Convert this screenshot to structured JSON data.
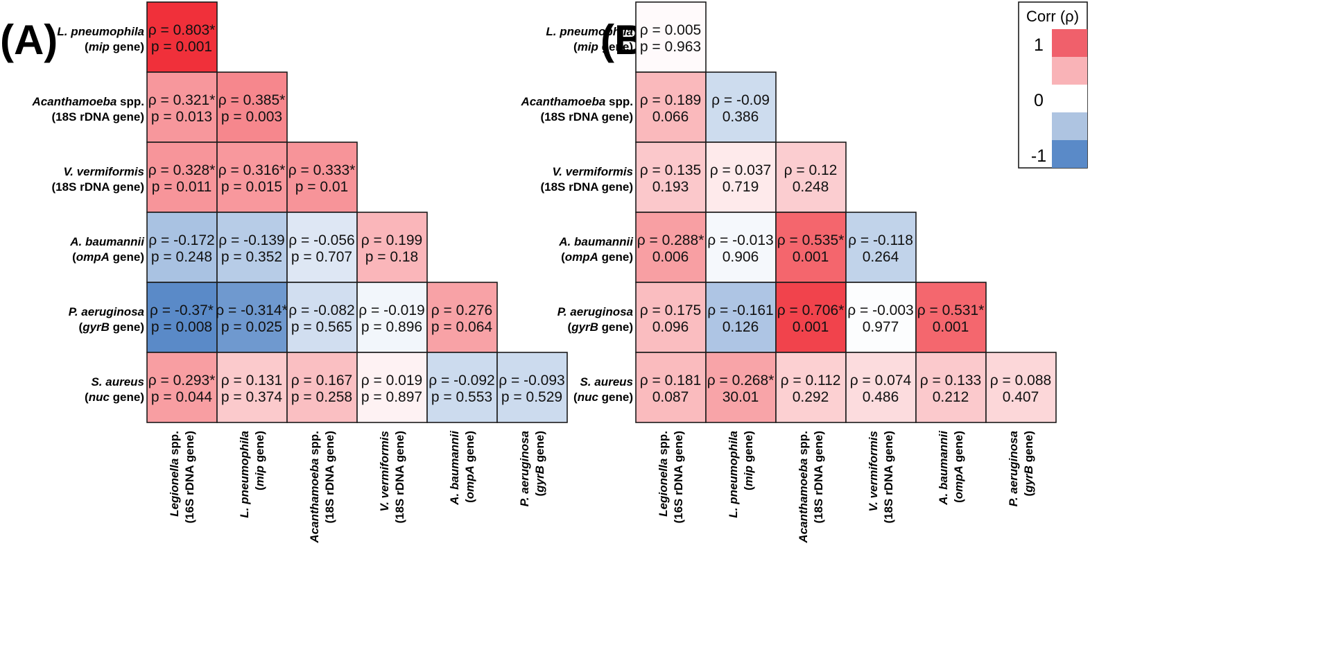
{
  "chart_data": [
    {
      "type": "heatmap",
      "panel": "(A)",
      "rows": [
        {
          "species": "L. pneumophila",
          "species_suffix": "",
          "gene_italic": "mip",
          "gene_rest": " gene"
        },
        {
          "species": "Acanthamoeba",
          "species_suffix": " spp.",
          "gene_italic": "",
          "gene_rest": "18S rDNA gene"
        },
        {
          "species": "V. vermiformis",
          "species_suffix": "",
          "gene_italic": "",
          "gene_rest": "18S rDNA gene"
        },
        {
          "species": "A. baumannii",
          "species_suffix": "",
          "gene_italic": "ompA",
          "gene_rest": " gene"
        },
        {
          "species": "P. aeruginosa",
          "species_suffix": "",
          "gene_italic": "gyrB",
          "gene_rest": " gene"
        },
        {
          "species": "S. aureus",
          "species_suffix": "",
          "gene_italic": "nuc",
          "gene_rest": " gene"
        }
      ],
      "columns": [
        {
          "species": "Legionella",
          "species_suffix": " spp.",
          "gene_italic": "",
          "gene_rest": "16S rDNA gene"
        },
        {
          "species": "L. pneumophila",
          "species_suffix": "",
          "gene_italic": "mip",
          "gene_rest": " gene"
        },
        {
          "species": "Acanthamoeba",
          "species_suffix": " spp.",
          "gene_italic": "",
          "gene_rest": "18S rDNA gene"
        },
        {
          "species": "V. vermiformis",
          "species_suffix": "",
          "gene_italic": "",
          "gene_rest": "18S rDNA gene"
        },
        {
          "species": "A. baumannii",
          "species_suffix": "",
          "gene_italic": "ompA",
          "gene_rest": " gene"
        },
        {
          "species": "P. aeruginosa",
          "species_suffix": "",
          "gene_italic": "gyrB",
          "gene_rest": " gene"
        }
      ],
      "cells": [
        [
          {
            "rho": 0.803,
            "sig": true,
            "p_text": "p = 0.001"
          }
        ],
        [
          {
            "rho": 0.321,
            "sig": true,
            "p_text": "p = 0.013"
          },
          {
            "rho": 0.385,
            "sig": true,
            "p_text": "p = 0.003"
          }
        ],
        [
          {
            "rho": 0.328,
            "sig": true,
            "p_text": "p = 0.011"
          },
          {
            "rho": 0.316,
            "sig": true,
            "p_text": "p = 0.015"
          },
          {
            "rho": 0.333,
            "sig": true,
            "p_text": "p = 0.01"
          }
        ],
        [
          {
            "rho": -0.172,
            "sig": false,
            "p_text": "p = 0.248"
          },
          {
            "rho": -0.139,
            "sig": false,
            "p_text": "p = 0.352"
          },
          {
            "rho": -0.056,
            "sig": false,
            "p_text": "p = 0.707"
          },
          {
            "rho": 0.199,
            "sig": false,
            "p_text": "p = 0.18"
          }
        ],
        [
          {
            "rho": -0.37,
            "sig": true,
            "p_text": "p = 0.008"
          },
          {
            "rho": -0.314,
            "sig": true,
            "p_text": "p = 0.025"
          },
          {
            "rho": -0.082,
            "sig": false,
            "p_text": "p = 0.565"
          },
          {
            "rho": -0.019,
            "sig": false,
            "p_text": "p = 0.896"
          },
          {
            "rho": 0.276,
            "sig": false,
            "p_text": "p = 0.064"
          }
        ],
        [
          {
            "rho": 0.293,
            "sig": true,
            "p_text": "p = 0.044"
          },
          {
            "rho": 0.131,
            "sig": false,
            "p_text": "p = 0.374"
          },
          {
            "rho": 0.167,
            "sig": false,
            "p_text": "p = 0.258"
          },
          {
            "rho": 0.019,
            "sig": false,
            "p_text": "p = 0.897"
          },
          {
            "rho": -0.092,
            "sig": false,
            "p_text": "p = 0.553"
          },
          {
            "rho": -0.093,
            "sig": false,
            "p_text": "p = 0.529"
          }
        ]
      ]
    },
    {
      "type": "heatmap",
      "panel": "(B)",
      "rows": [
        {
          "species": "L. pneumophila",
          "species_suffix": "",
          "gene_italic": "mip",
          "gene_rest": " gene"
        },
        {
          "species": "Acanthamoeba",
          "species_suffix": " spp.",
          "gene_italic": "",
          "gene_rest": "18S rDNA gene"
        },
        {
          "species": "V. vermiformis",
          "species_suffix": "",
          "gene_italic": "",
          "gene_rest": "18S rDNA gene"
        },
        {
          "species": "A. baumannii",
          "species_suffix": "",
          "gene_italic": "ompA",
          "gene_rest": " gene"
        },
        {
          "species": "P. aeruginosa",
          "species_suffix": "",
          "gene_italic": "gyrB",
          "gene_rest": " gene"
        },
        {
          "species": "S. aureus",
          "species_suffix": "",
          "gene_italic": "nuc",
          "gene_rest": " gene"
        }
      ],
      "columns": [
        {
          "species": "Legionella",
          "species_suffix": " spp.",
          "gene_italic": "",
          "gene_rest": "16S rDNA gene"
        },
        {
          "species": "L. pneumophila",
          "species_suffix": "",
          "gene_italic": "mip",
          "gene_rest": " gene"
        },
        {
          "species": "Acanthamoeba",
          "species_suffix": " spp.",
          "gene_italic": "",
          "gene_rest": "18S rDNA gene"
        },
        {
          "species": "V. vermiformis",
          "species_suffix": "",
          "gene_italic": "",
          "gene_rest": "18S rDNA gene"
        },
        {
          "species": "A. baumannii",
          "species_suffix": "",
          "gene_italic": "ompA",
          "gene_rest": " gene"
        },
        {
          "species": "P. aeruginosa",
          "species_suffix": "",
          "gene_italic": "gyrB",
          "gene_rest": " gene"
        }
      ],
      "cells": [
        [
          {
            "rho": 0.005,
            "sig": false,
            "p_text": "p = 0.963"
          }
        ],
        [
          {
            "rho": 0.189,
            "sig": false,
            "p_text": "0.066"
          },
          {
            "rho": -0.09,
            "sig": false,
            "p_text": "0.386"
          }
        ],
        [
          {
            "rho": 0.135,
            "sig": false,
            "p_text": "0.193"
          },
          {
            "rho": 0.037,
            "sig": false,
            "p_text": "0.719"
          },
          {
            "rho": 0.12,
            "sig": false,
            "p_text": "0.248"
          }
        ],
        [
          {
            "rho": 0.288,
            "sig": true,
            "p_text": "0.006"
          },
          {
            "rho": -0.013,
            "sig": false,
            "p_text": "0.906"
          },
          {
            "rho": 0.535,
            "sig": true,
            "p_text": "0.001"
          },
          {
            "rho": -0.118,
            "sig": false,
            "p_text": "0.264"
          }
        ],
        [
          {
            "rho": 0.175,
            "sig": false,
            "p_text": "0.096"
          },
          {
            "rho": -0.161,
            "sig": false,
            "p_text": "0.126"
          },
          {
            "rho": 0.706,
            "sig": true,
            "p_text": "0.001"
          },
          {
            "rho": -0.003,
            "sig": false,
            "p_text": "0.977"
          },
          {
            "rho": 0.531,
            "sig": true,
            "p_text": "0.001"
          }
        ],
        [
          {
            "rho": 0.181,
            "sig": false,
            "p_text": "0.087"
          },
          {
            "rho": 0.268,
            "sig": true,
            "p_text": "30.01"
          },
          {
            "rho": 0.112,
            "sig": false,
            "p_text": "0.292"
          },
          {
            "rho": 0.074,
            "sig": false,
            "p_text": "0.486"
          },
          {
            "rho": 0.133,
            "sig": false,
            "p_text": "0.212"
          },
          {
            "rho": 0.088,
            "sig": false,
            "p_text": "0.407"
          }
        ]
      ]
    }
  ],
  "legend": {
    "title": "Corr (ρ)",
    "ticks": [
      "1",
      "0",
      "-1"
    ],
    "colors": [
      "#f0606b",
      "#f9b3b7",
      "#ffffff",
      "#aec4e1",
      "#5a8ac8"
    ]
  },
  "colors": {
    "negative_full": "#5a8ac8",
    "zero": "#ffffff",
    "positive_full": "#f0303a",
    "border": "#1a1a1a"
  }
}
